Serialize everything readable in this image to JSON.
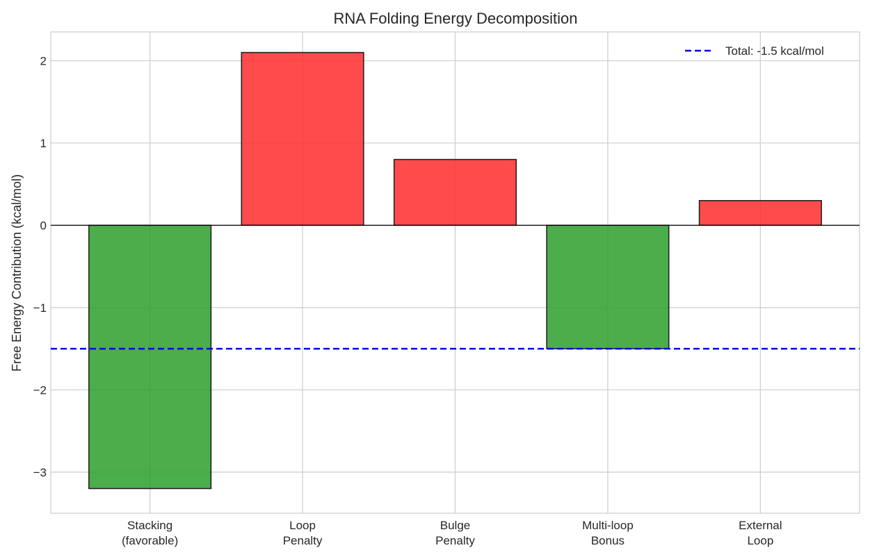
{
  "chart_data": {
    "type": "bar",
    "title": "RNA Folding Energy Decomposition",
    "xlabel": "",
    "ylabel": "Free Energy Contribution (kcal/mol)",
    "categories": [
      [
        "Stacking",
        "(favorable)"
      ],
      [
        "Loop",
        "Penalty"
      ],
      [
        "Bulge",
        "Penalty"
      ],
      [
        "Multi-loop",
        "Bonus"
      ],
      [
        "External",
        "Loop"
      ]
    ],
    "values": [
      -3.2,
      2.1,
      0.8,
      -1.5,
      0.3
    ],
    "bar_colors": [
      "#2ca02c",
      "#ff2b2b",
      "#ff2b2b",
      "#2ca02c",
      "#ff2b2b"
    ],
    "ylim": [
      -3.5,
      2.35
    ],
    "yticks": [
      2,
      1,
      0,
      -1,
      -2,
      -3
    ],
    "ytick_labels": [
      "2",
      "1",
      "0",
      "−1",
      "−2",
      "−3"
    ],
    "grid": true,
    "reference_line": {
      "y": -1.5,
      "color": "#0000dd",
      "style": "dashed"
    },
    "legend": {
      "position": "top-right",
      "entries": [
        "Total: -1.5 kcal/mol"
      ]
    }
  }
}
